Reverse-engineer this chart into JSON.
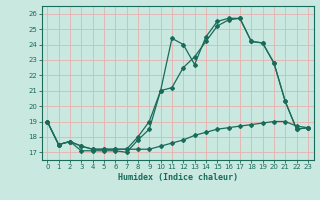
{
  "xlabel": "Humidex (Indice chaleur)",
  "background_color": "#c8e8e0",
  "grid_color": "#e8b0b0",
  "line_color": "#1a6b5a",
  "xlim": [
    -0.5,
    23.5
  ],
  "ylim": [
    16.5,
    26.5
  ],
  "yticks": [
    17,
    18,
    19,
    20,
    21,
    22,
    23,
    24,
    25,
    26
  ],
  "xticks": [
    0,
    1,
    2,
    3,
    4,
    5,
    6,
    7,
    8,
    9,
    10,
    11,
    12,
    13,
    14,
    15,
    16,
    17,
    18,
    19,
    20,
    21,
    22,
    23
  ],
  "line1_x": [
    0,
    1,
    2,
    3,
    4,
    5,
    6,
    7,
    8,
    9,
    10,
    11,
    12,
    13,
    14,
    15,
    16,
    17,
    18,
    19,
    20,
    21,
    22,
    23
  ],
  "line1_y": [
    19,
    17.5,
    17.7,
    17.1,
    17.1,
    17.1,
    17.1,
    17.0,
    17.8,
    18.5,
    21.0,
    24.4,
    24.0,
    22.7,
    24.5,
    25.5,
    25.7,
    25.7,
    24.2,
    24.1,
    22.8,
    20.3,
    18.5,
    18.6
  ],
  "line2_x": [
    0,
    1,
    2,
    3,
    4,
    5,
    6,
    7,
    8,
    9,
    10,
    11,
    12,
    13,
    14,
    15,
    16,
    17,
    18,
    19,
    20,
    21,
    22,
    23
  ],
  "line2_y": [
    19,
    17.5,
    17.7,
    17.4,
    17.2,
    17.2,
    17.2,
    17.2,
    18.0,
    19.0,
    21.0,
    21.2,
    22.5,
    23.2,
    24.2,
    25.2,
    25.6,
    25.7,
    24.2,
    24.1,
    22.8,
    20.3,
    18.5,
    18.6
  ],
  "line3_x": [
    0,
    1,
    2,
    3,
    4,
    5,
    6,
    7,
    8,
    9,
    10,
    11,
    12,
    13,
    14,
    15,
    16,
    17,
    18,
    19,
    20,
    21,
    22,
    23
  ],
  "line3_y": [
    19,
    17.5,
    17.7,
    17.4,
    17.2,
    17.2,
    17.2,
    17.2,
    17.2,
    17.2,
    17.4,
    17.6,
    17.8,
    18.1,
    18.3,
    18.5,
    18.6,
    18.7,
    18.8,
    18.9,
    19.0,
    19.0,
    18.7,
    18.6
  ]
}
